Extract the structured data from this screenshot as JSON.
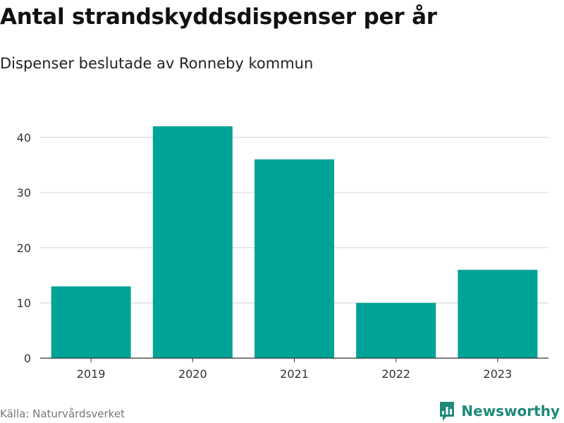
{
  "title": "Antal strandskyddsdispenser per år",
  "subtitle": "Dispenser beslutade av Ronneby kommun",
  "source": "Källa: Naturvårdsverket",
  "brand": {
    "name": "Newsworthy",
    "logo_icon": "bar-chart-speech-bubble-icon",
    "color": "#1f8a7a"
  },
  "colors": {
    "bar": "#00a398",
    "grid": "#dddddd",
    "axis": "#333333"
  },
  "chart_data": {
    "type": "bar",
    "categories": [
      "2019",
      "2020",
      "2021",
      "2022",
      "2023"
    ],
    "values": [
      13,
      42,
      36,
      10,
      16
    ],
    "title": "Antal strandskyddsdispenser per år",
    "subtitle": "Dispenser beslutade av Ronneby kommun",
    "xlabel": "",
    "ylabel": "",
    "ylim": [
      0,
      45
    ],
    "yticks": [
      0,
      10,
      20,
      30,
      40
    ],
    "grid": true,
    "legend": "none"
  }
}
